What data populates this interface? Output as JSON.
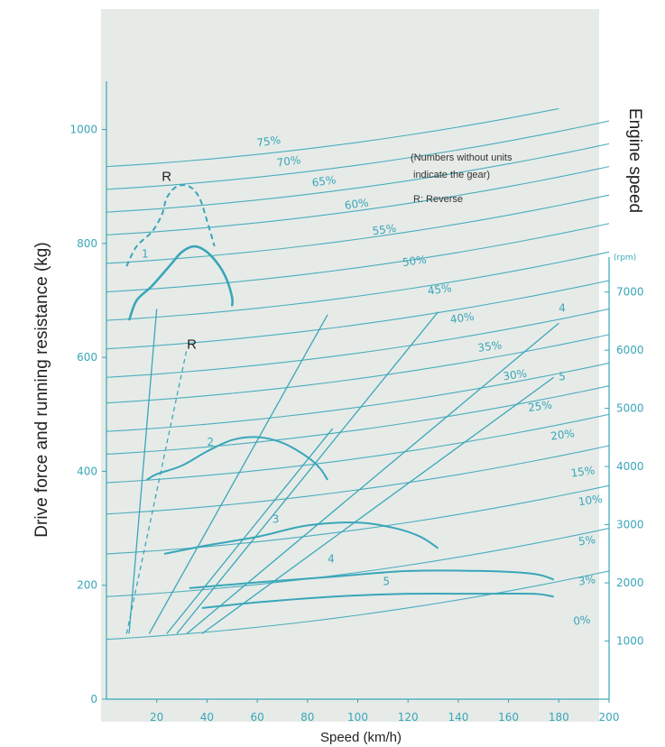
{
  "chart_data": {
    "type": "line",
    "xlabel": "Speed (km/h)",
    "ylabel": "Drive force and running resistance (kg)",
    "y2label": "Engine speed",
    "y2unit": "(rpm)",
    "note_lines": [
      "(Numbers without units",
      "indicate the gear)",
      "R: Reverse"
    ],
    "xlim": [
      0,
      200
    ],
    "ylim": [
      0,
      1050
    ],
    "y2lim": [
      0,
      7600
    ],
    "x_ticks": [
      20,
      40,
      60,
      80,
      100,
      120,
      140,
      160,
      180,
      200
    ],
    "x_tick_labels": [
      "20",
      "40",
      "60",
      "80",
      "100",
      "120",
      "140",
      "160",
      "180",
      "200"
    ],
    "y_ticks": [
      0,
      200,
      400,
      600,
      800,
      1000
    ],
    "y_tick_labels": [
      "0",
      "200",
      "400",
      "600",
      "800",
      "1000"
    ],
    "y2_ticks": [
      1000,
      2000,
      3000,
      4000,
      5000,
      6000,
      7000
    ],
    "y2_tick_labels": [
      "1000",
      "2000",
      "3000",
      "4000",
      "5000",
      "6000",
      "7000"
    ],
    "colors": {
      "curve": "#3aa6b8",
      "panel": "#e6ebe8",
      "text": "#222222"
    },
    "resistance_curves": [
      {
        "label": "75%",
        "y0": 935,
        "label_at": [
          60,
          970
        ]
      },
      {
        "label": "70%",
        "y0": 895,
        "label_at": [
          68,
          935
        ]
      },
      {
        "label": "65%",
        "y0": 855,
        "label_at": [
          82,
          900
        ]
      },
      {
        "label": "60%",
        "y0": 815,
        "label_at": [
          95,
          860
        ]
      },
      {
        "label": "55%",
        "y0": 765,
        "label_at": [
          106,
          815
        ]
      },
      {
        "label": "50%",
        "y0": 715,
        "label_at": [
          118,
          760
        ]
      },
      {
        "label": "45%",
        "y0": 665,
        "label_at": [
          128,
          710
        ]
      },
      {
        "label": "40%",
        "y0": 615,
        "label_at": [
          137,
          660
        ]
      },
      {
        "label": "35%",
        "y0": 565,
        "label_at": [
          148,
          610
        ]
      },
      {
        "label": "30%",
        "y0": 520,
        "label_at": [
          158,
          560
        ]
      },
      {
        "label": "25%",
        "y0": 470,
        "label_at": [
          168,
          505
        ]
      },
      {
        "label": "20%",
        "y0": 430,
        "label_at": [
          177,
          455
        ]
      },
      {
        "label": "15%",
        "y0": 380,
        "label_at": [
          185,
          390
        ]
      },
      {
        "label": "10%",
        "y0": 325,
        "label_at": [
          188,
          340
        ]
      },
      {
        "label": "5%",
        "y0": 255,
        "label_at": [
          188,
          270
        ]
      },
      {
        "label": "3%",
        "y0": 180,
        "label_at": [
          188,
          200
        ]
      },
      {
        "label": "0%",
        "y0": 105,
        "label_at": [
          186,
          130
        ]
      }
    ],
    "drive_force_curves": [
      {
        "label": "1",
        "label_at": [
          14,
          775
        ],
        "points": [
          [
            9,
            665
          ],
          [
            12,
            700
          ],
          [
            18,
            725
          ],
          [
            25,
            760
          ],
          [
            30,
            785
          ],
          [
            35,
            795
          ],
          [
            40,
            785
          ],
          [
            45,
            760
          ],
          [
            48,
            735
          ],
          [
            50,
            705
          ],
          [
            50,
            690
          ]
        ]
      },
      {
        "label": "R",
        "dashed": true,
        "label_at": [
          22,
          910
        ],
        "points": [
          [
            8,
            760
          ],
          [
            12,
            795
          ],
          [
            18,
            820
          ],
          [
            22,
            850
          ],
          [
            24,
            880
          ],
          [
            28,
            900
          ],
          [
            33,
            900
          ],
          [
            37,
            880
          ],
          [
            40,
            840
          ],
          [
            43,
            795
          ]
        ]
      },
      {
        "label": "2",
        "label_at": [
          40,
          445
        ],
        "points": [
          [
            16,
            385
          ],
          [
            20,
            395
          ],
          [
            30,
            410
          ],
          [
            40,
            435
          ],
          [
            50,
            455
          ],
          [
            60,
            460
          ],
          [
            70,
            450
          ],
          [
            80,
            425
          ],
          [
            85,
            405
          ],
          [
            88,
            385
          ]
        ]
      },
      {
        "label": "3",
        "label_at": [
          66,
          310
        ],
        "points": [
          [
            23,
            255
          ],
          [
            40,
            270
          ],
          [
            60,
            285
          ],
          [
            80,
            305
          ],
          [
            100,
            310
          ],
          [
            115,
            300
          ],
          [
            125,
            285
          ],
          [
            132,
            265
          ]
        ]
      },
      {
        "label": "4",
        "label_at": [
          88,
          240
        ],
        "points": [
          [
            33,
            195
          ],
          [
            60,
            205
          ],
          [
            90,
            215
          ],
          [
            120,
            225
          ],
          [
            150,
            225
          ],
          [
            170,
            220
          ],
          [
            178,
            210
          ]
        ]
      },
      {
        "label": "5",
        "label_at": [
          110,
          200
        ],
        "points": [
          [
            38,
            160
          ],
          [
            60,
            170
          ],
          [
            90,
            180
          ],
          [
            120,
            185
          ],
          [
            150,
            185
          ],
          [
            170,
            185
          ],
          [
            178,
            180
          ]
        ]
      }
    ],
    "engine_speed_lines": [
      {
        "label": "1",
        "points": [
          [
            9,
            115
          ],
          [
            20,
            685
          ]
        ]
      },
      {
        "label": "R",
        "dashed": true,
        "label_at": [
          32,
          615
        ],
        "points": [
          [
            8,
            115
          ],
          [
            32,
            615
          ]
        ]
      },
      {
        "label": "2",
        "points": [
          [
            17,
            115
          ],
          [
            88,
            675
          ]
        ]
      },
      {
        "label": "3",
        "points": [
          [
            24,
            115
          ],
          [
            90,
            475
          ]
        ]
      },
      {
        "label": "4",
        "label_at": [
          180,
          680
        ],
        "points": [
          [
            32,
            115
          ],
          [
            180,
            660
          ]
        ]
      },
      {
        "label": "5",
        "label_at": [
          180,
          560
        ],
        "points": [
          [
            38,
            115
          ],
          [
            178,
            565
          ]
        ]
      },
      {
        "label": "",
        "points": [
          [
            28,
            115
          ],
          [
            132,
            680
          ]
        ]
      }
    ]
  }
}
